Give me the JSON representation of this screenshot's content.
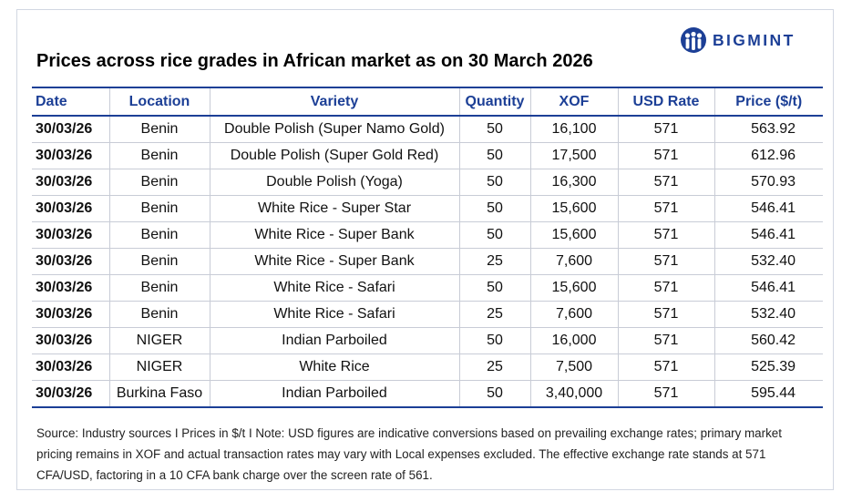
{
  "logo": {
    "text": "BIGMINT",
    "color": "#1c3f96"
  },
  "title": "Prices across rice grades in African market as on 30 March 2026",
  "table": {
    "headers": [
      "Date",
      "Location",
      "Variety",
      "Quantity",
      "XOF",
      "USD Rate",
      "Price ($/t)"
    ],
    "rows": [
      [
        "30/03/26",
        "Benin",
        "Double Polish (Super Namo Gold)",
        "50",
        "16,100",
        "571",
        "563.92"
      ],
      [
        "30/03/26",
        "Benin",
        "Double Polish (Super Gold Red)",
        "50",
        "17,500",
        "571",
        "612.96"
      ],
      [
        "30/03/26",
        "Benin",
        "Double Polish (Yoga)",
        "50",
        "16,300",
        "571",
        "570.93"
      ],
      [
        "30/03/26",
        "Benin",
        "White Rice - Super Star",
        "50",
        "15,600",
        "571",
        "546.41"
      ],
      [
        "30/03/26",
        "Benin",
        "White Rice - Super Bank",
        "50",
        "15,600",
        "571",
        "546.41"
      ],
      [
        "30/03/26",
        "Benin",
        "White Rice - Super Bank",
        "25",
        "7,600",
        "571",
        "532.40"
      ],
      [
        "30/03/26",
        "Benin",
        "White Rice - Safari",
        "50",
        "15,600",
        "571",
        "546.41"
      ],
      [
        "30/03/26",
        "Benin",
        "White Rice - Safari",
        "25",
        "7,600",
        "571",
        "532.40"
      ],
      [
        "30/03/26",
        "NIGER",
        "Indian Parboiled",
        "50",
        "16,000",
        "571",
        "560.42"
      ],
      [
        "30/03/26",
        "NIGER",
        "White Rice",
        "25",
        "7,500",
        "571",
        "525.39"
      ],
      [
        "30/03/26",
        "Burkina Faso",
        "Indian Parboiled",
        "50",
        "3,40,000",
        "571",
        "595.44"
      ]
    ]
  },
  "note": "Source: Industry sources I Prices in $/t I Note: USD figures are indicative conversions based on prevailing exchange rates; primary market pricing remains in XOF and actual transaction rates may vary with Local expenses excluded. The effective exchange rate stands at 571 CFA/USD, factoring in a 10 CFA bank charge over the screen rate of 561."
}
